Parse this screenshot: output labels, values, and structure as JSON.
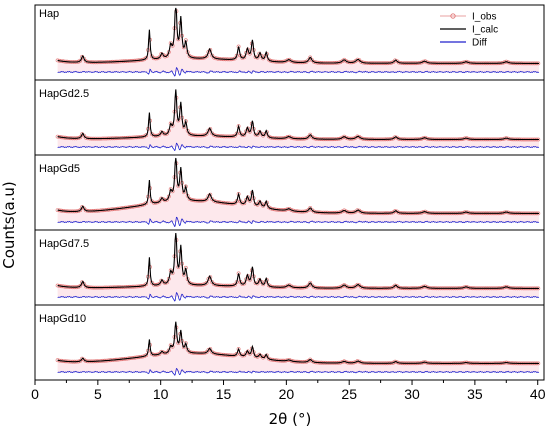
{
  "chart_data": {
    "type": "line",
    "xlabel": "2θ (°)",
    "ylabel": "Counts(a.u)",
    "xlim": [
      0,
      40.5
    ],
    "x_ticks": [
      0,
      5,
      10,
      15,
      20,
      25,
      30,
      35,
      40
    ],
    "x_tick_labels": [
      "0",
      "5",
      "10",
      "15",
      "20",
      "25",
      "30",
      "35",
      "40"
    ],
    "legend": {
      "placement": "top-right",
      "entries": [
        {
          "name": "I_obs",
          "color": "#e8a0a0",
          "style": "open-circle"
        },
        {
          "name": "I_calc",
          "color": "#000000",
          "style": "line"
        },
        {
          "name": "Diff",
          "color": "#2222cc",
          "style": "line"
        }
      ]
    },
    "colors": {
      "obs": "#e8a0a0",
      "obs_marker": "#e07070",
      "calc": "#000000",
      "diff": "#2222cc",
      "fill": "#fde8ec"
    },
    "panels": [
      {
        "label": "Hap"
      },
      {
        "label": "HapGd2.5"
      },
      {
        "label": "HapGd5"
      },
      {
        "label": "HapGd7.5"
      },
      {
        "label": "HapGd10"
      }
    ]
  }
}
